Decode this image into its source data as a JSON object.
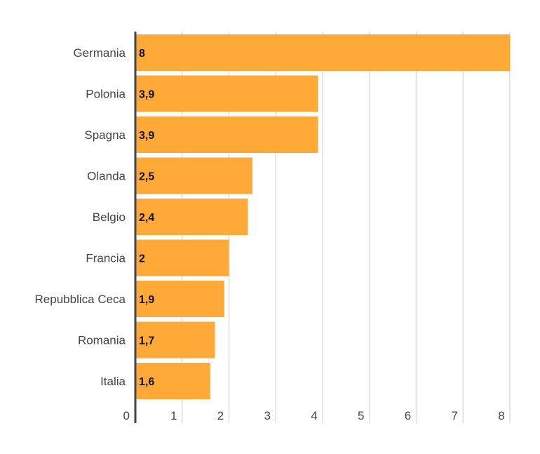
{
  "chart_data": {
    "type": "bar",
    "orientation": "horizontal",
    "title": "",
    "xlabel": "",
    "ylabel": "",
    "categories": [
      "Germania",
      "Polonia",
      "Spagna",
      "Olanda",
      "Belgio",
      "Francia",
      "Repubblica Ceca",
      "Romania",
      "Italia"
    ],
    "values": [
      8,
      3.9,
      3.9,
      2.5,
      2.4,
      2,
      1.9,
      1.7,
      1.6
    ],
    "data_labels": [
      "8",
      "3,9",
      "3,9",
      "2,5",
      "2,4",
      "2",
      "1,9",
      "1,7",
      "1,6"
    ],
    "xlim": [
      0,
      8
    ],
    "x_ticks": [
      "0",
      "1",
      "2",
      "3",
      "4",
      "5",
      "6",
      "7",
      "8"
    ],
    "grid": true,
    "legend": "none",
    "bar_color": "#FFA939"
  }
}
